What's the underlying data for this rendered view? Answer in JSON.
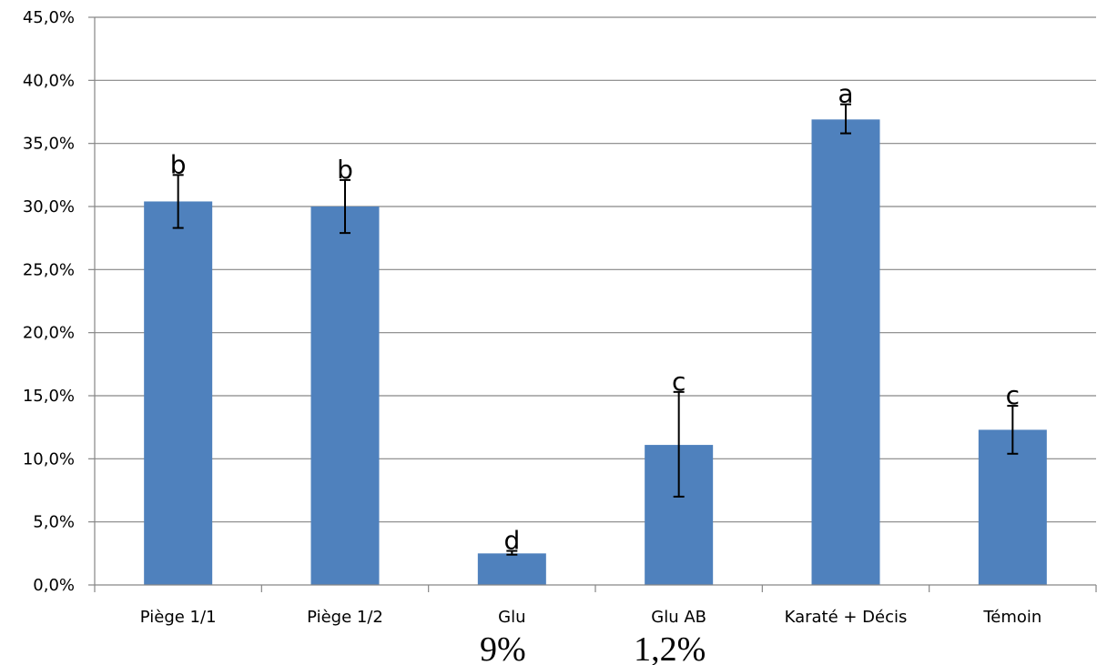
{
  "chart_data": {
    "type": "bar",
    "categories": [
      "Piège 1/1",
      "Piège 1/2",
      "Glu",
      "Glu AB",
      "Karaté + Décis",
      "Témoin"
    ],
    "values": [
      30.4,
      30.0,
      2.5,
      11.1,
      36.9,
      12.3
    ],
    "error_low": [
      28.3,
      27.9,
      2.4,
      7.0,
      35.8,
      10.4
    ],
    "error_high": [
      32.5,
      32.1,
      2.7,
      15.3,
      38.1,
      14.2
    ],
    "significance_letters": [
      "b",
      "b",
      "d",
      "c",
      "a",
      "c"
    ],
    "ylim": [
      0,
      45
    ],
    "y_ticks": [
      0,
      5,
      10,
      15,
      20,
      25,
      30,
      35,
      40,
      45
    ],
    "y_tick_labels": [
      "0,0%",
      "5,0%",
      "10,0%",
      "15,0%",
      "20,0%",
      "25,0%",
      "30,0%",
      "35,0%",
      "40,0%",
      "45,0%"
    ],
    "grid": true,
    "bar_color": "#4F81BD",
    "title": "",
    "xlabel": "",
    "ylabel": "",
    "annotations": [
      {
        "text": "9%",
        "under_category": "Glu"
      },
      {
        "text": "1,2%",
        "under_category": "Glu AB"
      }
    ]
  }
}
